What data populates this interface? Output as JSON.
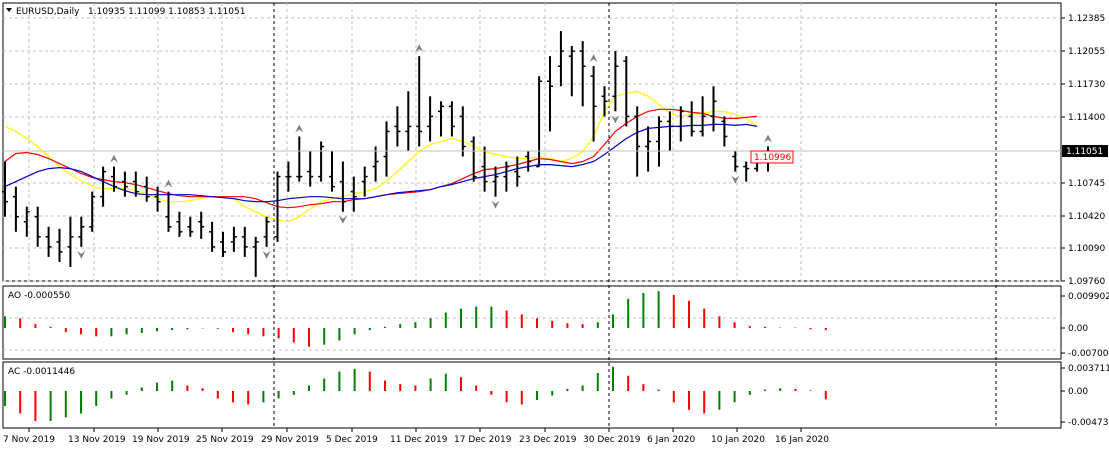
{
  "header": {
    "symbol": "EURUSD,Daily",
    "ohlc": "1.10935 1.11099 1.10853 1.11051"
  },
  "price_tag": "1.11051",
  "line_tag": "1.10996",
  "colors": {
    "bull_bar": "#000000",
    "ma_yellow": "#ffff00",
    "ma_red": "#ff0000",
    "ma_blue": "#0000cd",
    "osc_up": "#008000",
    "osc_down": "#ff0000",
    "grid": "#c0c0c0",
    "fractal": "#808080"
  },
  "chart_data": [
    {
      "type": "bar",
      "subtype": "ohlc",
      "title": "EURUSD,Daily",
      "ylim": [
        1.0976,
        1.1238
      ],
      "yticks": [
        "1.12385",
        "1.12055",
        "1.11730",
        "1.11400",
        "1.11051",
        "1.10745",
        "1.10420",
        "1.10090",
        "1.09760"
      ],
      "xticks": [
        "7 Nov 2019",
        "13 Nov 2019",
        "19 Nov 2019",
        "25 Nov 2019",
        "29 Nov 2019",
        "5 Dec 2019",
        "11 Dec 2019",
        "17 Dec 2019",
        "23 Dec 2019",
        "30 Dec 2019",
        "6 Jan 2020",
        "10 Jan 2020",
        "16 Jan 2020"
      ],
      "bars": [
        {
          "o": 1.1065,
          "h": 1.1095,
          "l": 1.104,
          "c": 1.1055
        },
        {
          "o": 1.106,
          "h": 1.107,
          "l": 1.1025,
          "c": 1.104
        },
        {
          "o": 1.1035,
          "h": 1.105,
          "l": 1.102,
          "c": 1.1045
        },
        {
          "o": 1.104,
          "h": 1.105,
          "l": 1.101,
          "c": 1.102
        },
        {
          "o": 1.102,
          "h": 1.103,
          "l": 1.1,
          "c": 1.101
        },
        {
          "o": 1.1015,
          "h": 1.1028,
          "l": 1.0995,
          "c": 1.1005
        },
        {
          "o": 1.101,
          "h": 1.104,
          "l": 1.099,
          "c": 1.102
        },
        {
          "o": 1.102,
          "h": 1.104,
          "l": 1.101,
          "c": 1.103
        },
        {
          "o": 1.103,
          "h": 1.1065,
          "l": 1.1025,
          "c": 1.106
        },
        {
          "o": 1.106,
          "h": 1.109,
          "l": 1.105,
          "c": 1.1085
        },
        {
          "o": 1.108,
          "h": 1.109,
          "l": 1.1065,
          "c": 1.107
        },
        {
          "o": 1.1075,
          "h": 1.1085,
          "l": 1.106,
          "c": 1.107
        },
        {
          "o": 1.1075,
          "h": 1.1085,
          "l": 1.106,
          "c": 1.1065
        },
        {
          "o": 1.107,
          "h": 1.108,
          "l": 1.1055,
          "c": 1.106
        },
        {
          "o": 1.106,
          "h": 1.107,
          "l": 1.1045,
          "c": 1.1055
        },
        {
          "o": 1.104,
          "h": 1.1065,
          "l": 1.1025,
          "c": 1.103
        },
        {
          "o": 1.1035,
          "h": 1.1045,
          "l": 1.102,
          "c": 1.1025
        },
        {
          "o": 1.103,
          "h": 1.104,
          "l": 1.102,
          "c": 1.1025
        },
        {
          "o": 1.1035,
          "h": 1.1045,
          "l": 1.1018,
          "c": 1.103
        },
        {
          "o": 1.1025,
          "h": 1.1035,
          "l": 1.1005,
          "c": 1.101
        },
        {
          "o": 1.1015,
          "h": 1.1025,
          "l": 1.1,
          "c": 1.1005
        },
        {
          "o": 1.1015,
          "h": 1.103,
          "l": 1.1005,
          "c": 1.102
        },
        {
          "o": 1.102,
          "h": 1.103,
          "l": 1.1,
          "c": 1.101
        },
        {
          "o": 1.101,
          "h": 1.102,
          "l": 1.098,
          "c": 1.1015
        },
        {
          "o": 1.102,
          "h": 1.104,
          "l": 1.101,
          "c": 1.1035
        },
        {
          "o": 1.102,
          "h": 1.1085,
          "l": 1.1015,
          "c": 1.108
        },
        {
          "o": 1.108,
          "h": 1.1095,
          "l": 1.1065,
          "c": 1.108
        },
        {
          "o": 1.108,
          "h": 1.112,
          "l": 1.1075,
          "c": 1.108
        },
        {
          "o": 1.1085,
          "h": 1.1105,
          "l": 1.107,
          "c": 1.108
        },
        {
          "o": 1.108,
          "h": 1.1115,
          "l": 1.1075,
          "c": 1.111
        },
        {
          "o": 1.108,
          "h": 1.1105,
          "l": 1.1065,
          "c": 1.107
        },
        {
          "o": 1.1075,
          "h": 1.1095,
          "l": 1.1045,
          "c": 1.1055
        },
        {
          "o": 1.1065,
          "h": 1.108,
          "l": 1.1045,
          "c": 1.106
        },
        {
          "o": 1.1075,
          "h": 1.109,
          "l": 1.106,
          "c": 1.108
        },
        {
          "o": 1.109,
          "h": 1.111,
          "l": 1.1075,
          "c": 1.1095
        },
        {
          "o": 1.11,
          "h": 1.1135,
          "l": 1.108,
          "c": 1.1125
        },
        {
          "o": 1.113,
          "h": 1.115,
          "l": 1.111,
          "c": 1.1125
        },
        {
          "o": 1.1125,
          "h": 1.1165,
          "l": 1.1105,
          "c": 1.113
        },
        {
          "o": 1.113,
          "h": 1.12,
          "l": 1.111,
          "c": 1.1125
        },
        {
          "o": 1.113,
          "h": 1.116,
          "l": 1.1115,
          "c": 1.114
        },
        {
          "o": 1.1145,
          "h": 1.1155,
          "l": 1.112,
          "c": 1.115
        },
        {
          "o": 1.115,
          "h": 1.1155,
          "l": 1.112,
          "c": 1.113
        },
        {
          "o": 1.114,
          "h": 1.115,
          "l": 1.11,
          "c": 1.111
        },
        {
          "o": 1.1115,
          "h": 1.112,
          "l": 1.1075,
          "c": 1.108
        },
        {
          "o": 1.109,
          "h": 1.111,
          "l": 1.1065,
          "c": 1.1075
        },
        {
          "o": 1.1075,
          "h": 1.109,
          "l": 1.106,
          "c": 1.108
        },
        {
          "o": 1.108,
          "h": 1.1095,
          "l": 1.1065,
          "c": 1.109
        },
        {
          "o": 1.1085,
          "h": 1.11,
          "l": 1.107,
          "c": 1.108
        },
        {
          "o": 1.11,
          "h": 1.1105,
          "l": 1.1085,
          "c": 1.1095
        },
        {
          "o": 1.109,
          "h": 1.118,
          "l": 1.109,
          "c": 1.1175
        },
        {
          "o": 1.1175,
          "h": 1.12,
          "l": 1.1125,
          "c": 1.117
        },
        {
          "o": 1.119,
          "h": 1.1225,
          "l": 1.117,
          "c": 1.1205
        },
        {
          "o": 1.12,
          "h": 1.121,
          "l": 1.116,
          "c": 1.1205
        },
        {
          "o": 1.1205,
          "h": 1.1215,
          "l": 1.115,
          "c": 1.119
        },
        {
          "o": 1.118,
          "h": 1.119,
          "l": 1.1115,
          "c": 1.115
        },
        {
          "o": 1.116,
          "h": 1.117,
          "l": 1.114,
          "c": 1.1155
        },
        {
          "o": 1.116,
          "h": 1.1205,
          "l": 1.1145,
          "c": 1.119
        },
        {
          "o": 1.1195,
          "h": 1.12,
          "l": 1.113,
          "c": 1.114
        },
        {
          "o": 1.114,
          "h": 1.115,
          "l": 1.108,
          "c": 1.111
        },
        {
          "o": 1.111,
          "h": 1.113,
          "l": 1.1085,
          "c": 1.1115
        },
        {
          "o": 1.1115,
          "h": 1.114,
          "l": 1.109,
          "c": 1.1135
        },
        {
          "o": 1.1135,
          "h": 1.1145,
          "l": 1.1105,
          "c": 1.113
        },
        {
          "o": 1.113,
          "h": 1.115,
          "l": 1.1115,
          "c": 1.1145
        },
        {
          "o": 1.114,
          "h": 1.1155,
          "l": 1.112,
          "c": 1.1125
        },
        {
          "o": 1.1125,
          "h": 1.116,
          "l": 1.112,
          "c": 1.114
        },
        {
          "o": 1.114,
          "h": 1.117,
          "l": 1.1125,
          "c": 1.1155
        },
        {
          "o": 1.1135,
          "h": 1.114,
          "l": 1.111,
          "c": 1.112
        },
        {
          "o": 1.11,
          "h": 1.1105,
          "l": 1.1085,
          "c": 1.109
        },
        {
          "o": 1.109,
          "h": 1.1095,
          "l": 1.1075,
          "c": 1.1088
        },
        {
          "o": 1.1088,
          "h": 1.11,
          "l": 1.1085,
          "c": 1.1095
        },
        {
          "o": 1.1094,
          "h": 1.111,
          "l": 1.1085,
          "c": 1.1105
        }
      ],
      "ma": [
        {
          "color": "yellow",
          "values": [
            1.113,
            1.1125,
            1.1118,
            1.111,
            1.11,
            1.109,
            1.1082,
            1.1076,
            1.107,
            1.1068,
            1.1068,
            1.1068,
            1.1066,
            1.1063,
            1.1058,
            1.1055,
            1.1055,
            1.1056,
            1.1058,
            1.106,
            1.106,
            1.1058,
            1.105,
            1.1045,
            1.104,
            1.1037,
            1.1035,
            1.104,
            1.1048,
            1.1055,
            1.1058,
            1.106,
            1.1063,
            1.1065,
            1.1068,
            1.1075,
            1.1085,
            1.1095,
            1.1105,
            1.1112,
            1.1115,
            1.1118,
            1.1115,
            1.111,
            1.1105,
            1.1102,
            1.11,
            1.1098,
            1.1098,
            1.11,
            1.1098,
            1.1095,
            1.1098,
            1.1105,
            1.112,
            1.1145,
            1.116,
            1.1163,
            1.1165,
            1.116,
            1.1152,
            1.1143,
            1.114,
            1.1142,
            1.1143,
            1.1145,
            1.1145,
            1.1142,
            1.1138,
            1.113
          ]
        },
        {
          "color": "red",
          "values": [
            1.1095,
            1.1103,
            1.1104,
            1.1102,
            1.1098,
            1.1093,
            1.1088,
            1.1083,
            1.1079,
            1.1077,
            1.1075,
            1.1074,
            1.1072,
            1.1069,
            1.1066,
            1.1063,
            1.1061,
            1.106,
            1.106,
            1.106,
            1.106,
            1.106,
            1.106,
            1.1058,
            1.1054,
            1.105,
            1.1049,
            1.105,
            1.1052,
            1.1053,
            1.1055,
            1.1055,
            1.1057,
            1.1058,
            1.106,
            1.1062,
            1.1063,
            1.1064,
            1.1065,
            1.1067,
            1.107,
            1.1073,
            1.1078,
            1.1083,
            1.1087,
            1.1088,
            1.109,
            1.1092,
            1.1095,
            1.1098,
            1.1097,
            1.1095,
            1.1093,
            1.1095,
            1.11,
            1.1112,
            1.1125,
            1.1133,
            1.114,
            1.1145,
            1.1147,
            1.1147,
            1.1146,
            1.1144,
            1.1143,
            1.114,
            1.1138,
            1.1138,
            1.1139,
            1.114
          ]
        },
        {
          "color": "blue",
          "values": [
            1.107,
            1.1075,
            1.108,
            1.1085,
            1.1088,
            1.1089,
            1.1088,
            1.1085,
            1.108,
            1.1075,
            1.107,
            1.1066,
            1.1063,
            1.1062,
            1.1062,
            1.1062,
            1.1062,
            1.1062,
            1.1061,
            1.106,
            1.1059,
            1.1058,
            1.1056,
            1.1055,
            1.1055,
            1.1056,
            1.1058,
            1.1059,
            1.106,
            1.106,
            1.1059,
            1.1058,
            1.1058,
            1.1058,
            1.106,
            1.1062,
            1.1064,
            1.1065,
            1.1066,
            1.1067,
            1.107,
            1.1072,
            1.1075,
            1.1078,
            1.108,
            1.1082,
            1.1085,
            1.1088,
            1.109,
            1.1092,
            1.1092,
            1.1091,
            1.109,
            1.1092,
            1.1095,
            1.1102,
            1.111,
            1.1118,
            1.1124,
            1.1128,
            1.1129,
            1.113,
            1.113,
            1.1131,
            1.1131,
            1.1132,
            1.1132,
            1.1131,
            1.1132,
            1.113
          ]
        }
      ]
    },
    {
      "type": "bar",
      "title": "AO -0.000550",
      "ylim": [
        -0.0072,
        0.0103
      ],
      "yticks": [
        "0.009902",
        "0.00",
        "-0.007004"
      ],
      "values": [
        0.003,
        0.0025,
        0.001,
        0.0003,
        -0.001,
        -0.0015,
        -0.002,
        -0.002,
        -0.0015,
        -0.0012,
        -0.0008,
        -0.0005,
        -0.0003,
        -0.0001,
        -0.0002,
        -0.001,
        -0.0015,
        -0.002,
        -0.0025,
        -0.0035,
        -0.0045,
        -0.004,
        -0.003,
        -0.0015,
        -0.0005,
        0.0003,
        0.001,
        0.0015,
        0.0025,
        0.004,
        0.005,
        0.0055,
        0.0055,
        0.0045,
        0.0035,
        0.0025,
        0.0018,
        0.0012,
        0.001,
        0.0015,
        0.0035,
        0.0075,
        0.009,
        0.0095,
        0.0085,
        0.007,
        0.005,
        0.003,
        0.0015,
        0.0005,
        0.0003,
        0.0001,
        0.0001,
        -0.0003,
        -0.0005
      ]
    },
    {
      "type": "bar",
      "title": "AC -0.0011446",
      "ylim": [
        -0.0048,
        0.0039
      ],
      "yticks": [
        "0.0037112",
        "0.00",
        "-0.004731"
      ],
      "values": [
        -0.002,
        -0.003,
        -0.004,
        -0.004,
        -0.0035,
        -0.003,
        -0.002,
        -0.001,
        -0.0005,
        0.0005,
        0.0012,
        0.0015,
        0.0008,
        0.0004,
        -0.001,
        -0.0015,
        -0.0018,
        -0.0015,
        -0.001,
        -0.0005,
        0.0008,
        0.0018,
        0.0028,
        0.0032,
        0.0028,
        0.0015,
        0.001,
        0.0008,
        0.0018,
        0.0025,
        0.002,
        0.0008,
        -0.0005,
        -0.0015,
        -0.0018,
        -0.0012,
        -0.0006,
        0.0003,
        0.0008,
        0.0026,
        0.0035,
        0.0022,
        0.001,
        0.0002,
        -0.0015,
        -0.0025,
        -0.003,
        -0.0025,
        -0.0015,
        -0.0005,
        0.0002,
        0.0004,
        0.0003,
        0.0001,
        -0.0011
      ]
    }
  ]
}
